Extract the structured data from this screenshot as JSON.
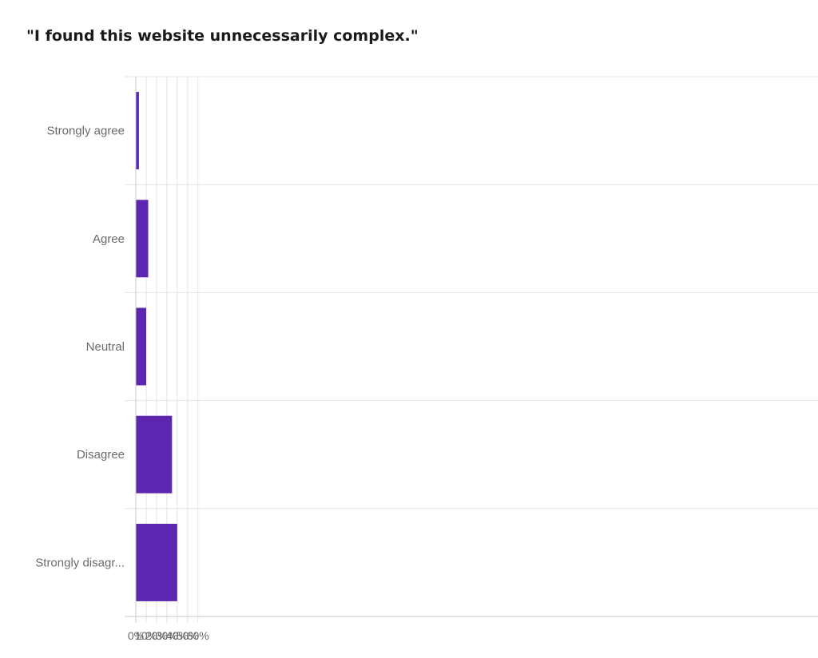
{
  "chart_data": {
    "type": "bar",
    "orientation": "horizontal",
    "title": "\"I found this website unnecessarily complex.\"",
    "categories": [
      "Strongly agree",
      "Agree",
      "Neutral",
      "Disagree",
      "Strongly disagr..."
    ],
    "values": [
      3,
      12,
      10,
      35,
      40
    ],
    "unit": "%",
    "xlabel": "",
    "ylabel": "",
    "xlim": [
      0,
      65
    ],
    "xticks": [
      "0%",
      "10%",
      "20%",
      "30%",
      "40%",
      "50%",
      "60%"
    ],
    "grid": true,
    "bar_color": "#5c26b0",
    "grid_color": "#e3e3e3",
    "axis_color": "#c8c8c8"
  }
}
